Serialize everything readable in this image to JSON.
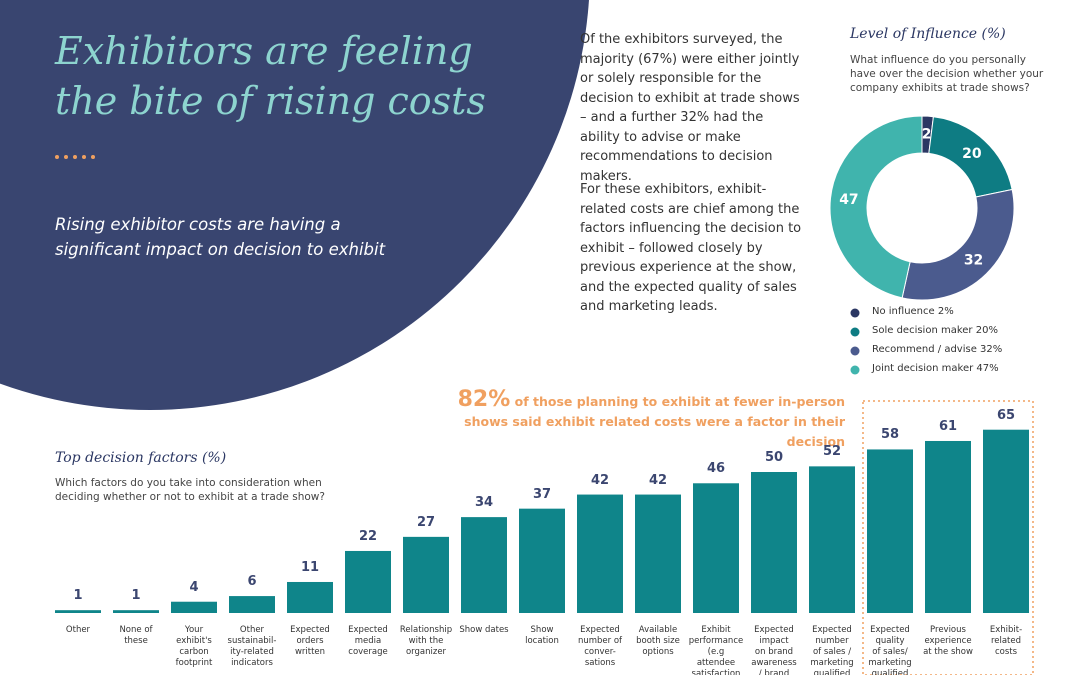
{
  "header": {
    "title": "Exhibitors are feeling the bite of rising costs",
    "subtitle": "Rising exhibitor costs are having a significant impact on decision to exhibit"
  },
  "intro": {
    "paragraphs": [
      "Of the exhibitors surveyed, the majority (67%) were either jointly or solely responsible for the decision to exhibit at trade shows – and a further 32% had the ability to advise or make recommendations to decision makers.",
      "For these exhibitors, exhibit-related costs are chief among the factors influencing the decision to exhibit – followed closely by previous experience at the show, and the expected quality of sales and marketing leads."
    ]
  },
  "callout": {
    "figure": "82%",
    "text": "of those planning to exhibit at fewer in-person shows said exhibit related costs were a factor in their decision"
  },
  "chart_data": [
    {
      "type": "pie",
      "title": "Level of Influence (%)",
      "subtitle": "What influence do you personally have over the decision whether your company exhibits at trade shows?",
      "categories": [
        "No influence 2%",
        "Sole decision maker 20%",
        "Recommend / advise 32%",
        "Joint decision maker 47%"
      ],
      "values": [
        2,
        20,
        32,
        47
      ],
      "colors": [
        "#2b3763",
        "#0e7c83",
        "#4b5b8e",
        "#40b4ad"
      ],
      "donut": true
    },
    {
      "type": "bar",
      "title": "Top decision factors (%)",
      "subtitle": "Which factors do you take into consideration when deciding whether or not to exhibit at a trade show?",
      "categories": [
        "Other",
        "None of\nthese",
        "Your\nexhibit's\ncarbon\nfootprint",
        "Other\nsustainabil-\nity-related\nindicators",
        "Expected\norders\nwritten",
        "Expected\nmedia\ncoverage",
        "Relationship\nwith the\norganizer",
        "Show dates",
        "Show\nlocation",
        "Expected\nnumber of\nconver-\nsations",
        "Available\nbooth size\noptions",
        "Exhibit\nperformance\n(e.g\nattendee\nsatisfaction",
        "Expected\nimpact\non brand\nawareness\n/ brand",
        "Expected\nnumber\nof sales /\nmarketing\nqualified",
        "Expected\nquality\nof sales/\nmarketing\nqualified",
        "Previous\nexperience\nat the show",
        "Exhibit-\nrelated\ncosts"
      ],
      "values": [
        1,
        1,
        4,
        6,
        11,
        22,
        27,
        34,
        37,
        42,
        42,
        46,
        50,
        52,
        58,
        61,
        65
      ],
      "color": "#0f858a"
    }
  ]
}
